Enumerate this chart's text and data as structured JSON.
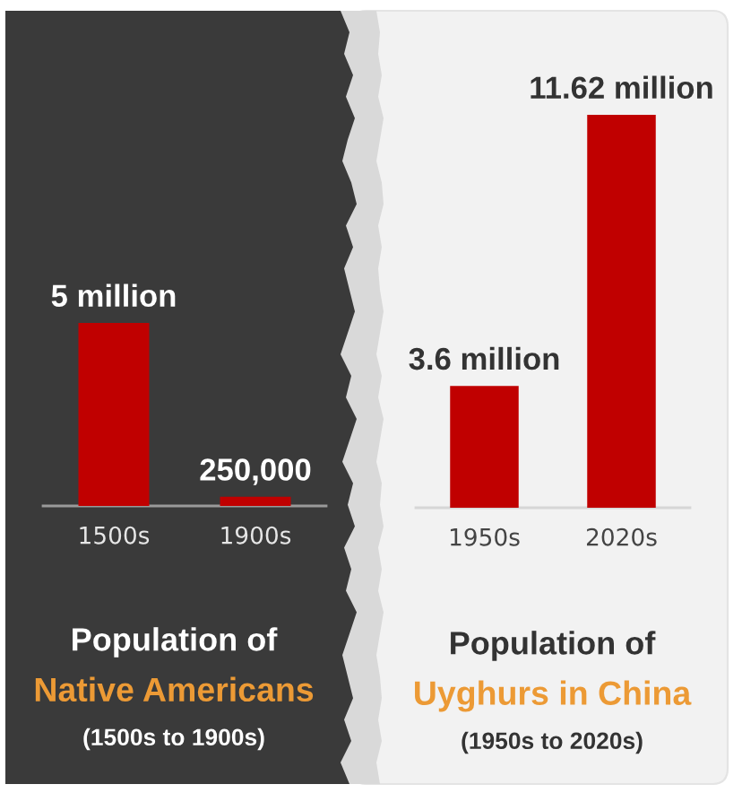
{
  "chart_data": [
    {
      "type": "bar",
      "title": "Population of\nNative Americans",
      "subtitle": "(1500s to 1900s)",
      "categories": [
        "1500s",
        "1900s"
      ],
      "values": [
        5000000,
        250000
      ],
      "value_labels": [
        "5 million",
        "250,000"
      ],
      "color": "#c00000"
    },
    {
      "type": "bar",
      "title": "Population of\nUyghurs in China",
      "subtitle": "(1950s to 2020s)",
      "categories": [
        "1950s",
        "2020s"
      ],
      "values": [
        3600000,
        11620000
      ],
      "value_labels": [
        "3.6 million",
        "11.62 million"
      ],
      "color": "#c00000"
    }
  ]
}
